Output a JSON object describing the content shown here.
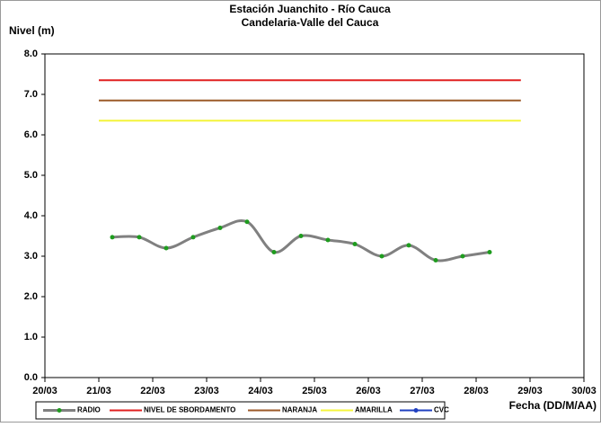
{
  "chart_data": {
    "type": "line",
    "title": "Estación Juanchito - Río Cauca",
    "subtitle": "Candelaria-Valle del Cauca",
    "y_label": "Nivel (m)",
    "x_label": "Fecha (DD/M/AA)",
    "xlim": [
      20,
      30
    ],
    "xticks": [
      {
        "value": 20,
        "label": "20/03"
      },
      {
        "value": 21,
        "label": "21/03"
      },
      {
        "value": 22,
        "label": "22/03"
      },
      {
        "value": 23,
        "label": "23/03"
      },
      {
        "value": 24,
        "label": "24/03"
      },
      {
        "value": 25,
        "label": "25/03"
      },
      {
        "value": 26,
        "label": "26/03"
      },
      {
        "value": 27,
        "label": "27/03"
      },
      {
        "value": 28,
        "label": "28/03"
      },
      {
        "value": 29,
        "label": "29/03"
      },
      {
        "value": 30,
        "label": "30/03"
      }
    ],
    "ylim": [
      0,
      8
    ],
    "yticks": [
      {
        "value": 0,
        "label": "0.0"
      },
      {
        "value": 1,
        "label": "1.0"
      },
      {
        "value": 2,
        "label": "2.0"
      },
      {
        "value": 3,
        "label": "3.0"
      },
      {
        "value": 4,
        "label": "4.0"
      },
      {
        "value": 5,
        "label": "5.0"
      },
      {
        "value": 6,
        "label": "6.0"
      },
      {
        "value": 7,
        "label": "7.0"
      },
      {
        "value": 8,
        "label": "8.0"
      }
    ],
    "grid": false,
    "legend": "bottom",
    "series": [
      {
        "name": "RADIO",
        "color": "#808080",
        "marker_color": "#1e9c1e",
        "smooth": true,
        "x": [
          21.25,
          21.75,
          22.25,
          22.75,
          23.25,
          23.75,
          24.25,
          24.75,
          25.25,
          25.75,
          26.25,
          26.75,
          27.25,
          27.75,
          28.25
        ],
        "values": [
          3.47,
          3.47,
          3.2,
          3.47,
          3.7,
          3.85,
          3.1,
          3.5,
          3.4,
          3.3,
          3.0,
          3.27,
          2.9,
          3.0,
          3.1
        ]
      },
      {
        "name": "NIVEL DE SBORDAMENTO",
        "color": "#e02020",
        "x": [
          21,
          28.83
        ],
        "values": [
          7.35,
          7.35
        ]
      },
      {
        "name": "NARANJA",
        "color": "#9c5a28",
        "x": [
          21,
          28.83
        ],
        "values": [
          6.85,
          6.85
        ]
      },
      {
        "name": "AMARILLA",
        "color": "#f4f43c",
        "x": [
          21,
          28.83
        ],
        "values": [
          6.35,
          6.35
        ]
      },
      {
        "name": "CVC",
        "color": "#2040c0",
        "marker_color": "#2040c0",
        "x": [],
        "values": []
      }
    ]
  }
}
